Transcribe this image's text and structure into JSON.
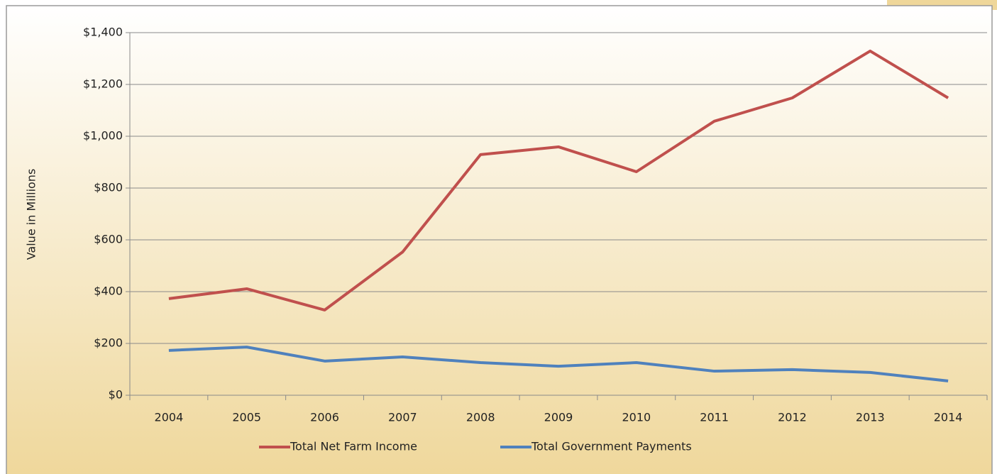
{
  "chart_data": {
    "type": "line",
    "ylabel": "Value in Millions",
    "categories": [
      "2004",
      "2005",
      "2006",
      "2007",
      "2008",
      "2009",
      "2010",
      "2011",
      "2012",
      "2013",
      "2014"
    ],
    "series": [
      {
        "name": "Total Net Farm Income",
        "color": "#c0504d",
        "values": [
          373,
          411,
          329,
          553,
          929,
          959,
          863,
          1058,
          1148,
          1329,
          1148
        ]
      },
      {
        "name": "Total Government Payments",
        "color": "#4f81bd",
        "values": [
          173,
          186,
          132,
          148,
          126,
          112,
          126,
          93,
          99,
          88,
          55
        ]
      }
    ],
    "ylim": [
      0,
      1400
    ],
    "yticks": [
      {
        "value": 0,
        "label": "$0"
      },
      {
        "value": 200,
        "label": "$200"
      },
      {
        "value": 400,
        "label": "$400"
      },
      {
        "value": 600,
        "label": "$600"
      },
      {
        "value": 800,
        "label": "$800"
      },
      {
        "value": 1000,
        "label": "$1,000"
      },
      {
        "value": 1200,
        "label": "$1,200"
      },
      {
        "value": 1400,
        "label": "$1,400"
      }
    ],
    "grid": true,
    "legend": "bottom"
  }
}
